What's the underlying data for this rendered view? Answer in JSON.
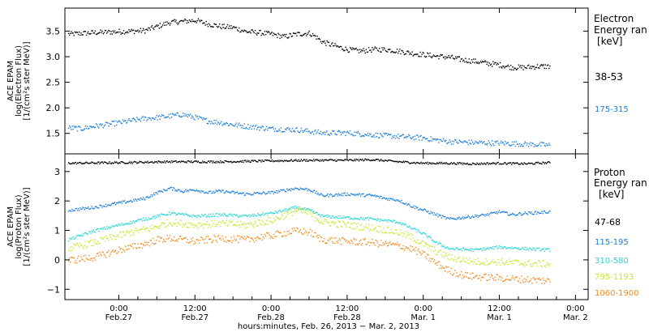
{
  "chart_data": [
    {
      "type": "scatter",
      "instrument_label": "ACE EPAM",
      "ylabel": "log(Electron Flux)",
      "yunits": "[1/(cm²s ster MeV)]",
      "legend_title": [
        "Electron",
        "Energy ran"
      ],
      "legend_units": "[keV]",
      "ylim": [
        1.1,
        3.95
      ],
      "yticks": [
        1.5,
        2.0,
        2.5,
        3.0,
        3.5
      ],
      "ytick_labels": [
        "1.5",
        "2.0",
        "2.5",
        "3.0",
        "3.5"
      ],
      "x_range_hours": [
        -8.5,
        74
      ],
      "series": [
        {
          "name": "38-53",
          "color": "#000000",
          "points": [
            [
              -8,
              3.45
            ],
            [
              -4,
              3.48
            ],
            [
              0,
              3.5
            ],
            [
              4,
              3.52
            ],
            [
              6,
              3.6
            ],
            [
              8,
              3.68
            ],
            [
              10,
              3.7
            ],
            [
              12,
              3.72
            ],
            [
              14,
              3.65
            ],
            [
              16,
              3.6
            ],
            [
              18,
              3.58
            ],
            [
              20,
              3.5
            ],
            [
              22,
              3.48
            ],
            [
              24,
              3.45
            ],
            [
              26,
              3.4
            ],
            [
              28,
              3.45
            ],
            [
              30,
              3.47
            ],
            [
              31,
              3.4
            ],
            [
              32,
              3.3
            ],
            [
              34,
              3.22
            ],
            [
              36,
              3.15
            ],
            [
              38,
              3.12
            ],
            [
              40,
              3.15
            ],
            [
              42,
              3.15
            ],
            [
              44,
              3.12
            ],
            [
              46,
              3.08
            ],
            [
              48,
              3.05
            ],
            [
              50,
              3.02
            ],
            [
              52,
              3.0
            ],
            [
              54,
              2.95
            ],
            [
              56,
              2.92
            ],
            [
              58,
              2.88
            ],
            [
              60,
              2.85
            ],
            [
              62,
              2.8
            ],
            [
              64,
              2.8
            ],
            [
              66,
              2.82
            ],
            [
              68,
              2.82
            ]
          ]
        },
        {
          "name": "175-315",
          "color": "#1f7fd6",
          "points": [
            [
              -8,
              1.62
            ],
            [
              -6,
              1.6
            ],
            [
              -4,
              1.65
            ],
            [
              -2,
              1.68
            ],
            [
              0,
              1.72
            ],
            [
              4,
              1.8
            ],
            [
              6,
              1.82
            ],
            [
              8,
              1.85
            ],
            [
              10,
              1.88
            ],
            [
              12,
              1.82
            ],
            [
              14,
              1.75
            ],
            [
              16,
              1.72
            ],
            [
              18,
              1.68
            ],
            [
              20,
              1.65
            ],
            [
              24,
              1.6
            ],
            [
              28,
              1.58
            ],
            [
              30,
              1.55
            ],
            [
              32,
              1.52
            ],
            [
              36,
              1.52
            ],
            [
              40,
              1.48
            ],
            [
              44,
              1.45
            ],
            [
              48,
              1.42
            ],
            [
              50,
              1.38
            ],
            [
              52,
              1.35
            ],
            [
              56,
              1.33
            ],
            [
              60,
              1.32
            ],
            [
              64,
              1.3
            ],
            [
              68,
              1.28
            ]
          ]
        }
      ]
    },
    {
      "type": "scatter",
      "instrument_label": "ACE EPAM",
      "ylabel": "log(Proton Flux)",
      "yunits": "[1/(cm²s ster MeV)]",
      "legend_title": [
        "Proton",
        "Energy ran"
      ],
      "legend_units": "[keV]",
      "ylim": [
        -1.35,
        3.6
      ],
      "yticks": [
        -1,
        0,
        1,
        2,
        3
      ],
      "ytick_labels": [
        "−1",
        "0",
        "1",
        "2",
        "3"
      ],
      "x_range_hours": [
        -8.5,
        74
      ],
      "xticks_hours": [
        0,
        12,
        24,
        36,
        48,
        60,
        72
      ],
      "xtick_labels": [
        [
          "0:00",
          "Feb.27"
        ],
        [
          "12:00",
          "Feb.27"
        ],
        [
          "0:00",
          "Feb.28"
        ],
        [
          "12:00",
          "Feb.28"
        ],
        [
          "0:00",
          "Mar. 1"
        ],
        [
          "12:00",
          "Mar. 1"
        ],
        [
          "0:00",
          "Mar. 2"
        ]
      ],
      "xlabel": "hours:minutes, Feb. 26, 2013 − Mar. 2, 2013",
      "series": [
        {
          "name": "47-68",
          "color": "#000000",
          "points": [
            [
              -8,
              3.3
            ],
            [
              0,
              3.32
            ],
            [
              8,
              3.35
            ],
            [
              16,
              3.35
            ],
            [
              24,
              3.38
            ],
            [
              30,
              3.4
            ],
            [
              36,
              3.4
            ],
            [
              40,
              3.42
            ],
            [
              44,
              3.35
            ],
            [
              48,
              3.3
            ],
            [
              52,
              3.3
            ],
            [
              56,
              3.28
            ],
            [
              60,
              3.3
            ],
            [
              64,
              3.28
            ],
            [
              68,
              3.32
            ]
          ]
        },
        {
          "name": "115-195",
          "color": "#1f7fd6",
          "points": [
            [
              -8,
              1.7
            ],
            [
              -4,
              1.8
            ],
            [
              0,
              1.95
            ],
            [
              4,
              2.1
            ],
            [
              6,
              2.3
            ],
            [
              8,
              2.45
            ],
            [
              10,
              2.35
            ],
            [
              12,
              2.4
            ],
            [
              14,
              2.3
            ],
            [
              16,
              2.35
            ],
            [
              20,
              2.25
            ],
            [
              24,
              2.3
            ],
            [
              28,
              2.45
            ],
            [
              30,
              2.4
            ],
            [
              32,
              2.2
            ],
            [
              36,
              2.25
            ],
            [
              40,
              2.2
            ],
            [
              42,
              2.1
            ],
            [
              44,
              2.05
            ],
            [
              46,
              1.85
            ],
            [
              48,
              1.7
            ],
            [
              50,
              1.55
            ],
            [
              52,
              1.4
            ],
            [
              54,
              1.45
            ],
            [
              56,
              1.5
            ],
            [
              58,
              1.55
            ],
            [
              60,
              1.65
            ],
            [
              62,
              1.55
            ],
            [
              64,
              1.6
            ],
            [
              66,
              1.62
            ],
            [
              68,
              1.65
            ]
          ]
        },
        {
          "name": "310-580",
          "color": "#2ad6d6",
          "points": [
            [
              -8,
              0.7
            ],
            [
              -4,
              1.0
            ],
            [
              0,
              1.2
            ],
            [
              4,
              1.4
            ],
            [
              6,
              1.5
            ],
            [
              8,
              1.6
            ],
            [
              12,
              1.5
            ],
            [
              16,
              1.55
            ],
            [
              20,
              1.5
            ],
            [
              24,
              1.6
            ],
            [
              28,
              1.8
            ],
            [
              30,
              1.7
            ],
            [
              32,
              1.5
            ],
            [
              36,
              1.45
            ],
            [
              40,
              1.4
            ],
            [
              44,
              1.3
            ],
            [
              46,
              1.1
            ],
            [
              48,
              0.9
            ],
            [
              50,
              0.6
            ],
            [
              52,
              0.4
            ],
            [
              56,
              0.35
            ],
            [
              60,
              0.45
            ],
            [
              64,
              0.4
            ],
            [
              68,
              0.35
            ]
          ]
        },
        {
          "name": "795-1193",
          "color": "#c8e62a",
          "points": [
            [
              -8,
              0.4
            ],
            [
              -4,
              0.6
            ],
            [
              0,
              0.85
            ],
            [
              4,
              1.05
            ],
            [
              6,
              1.15
            ],
            [
              8,
              1.3
            ],
            [
              12,
              1.2
            ],
            [
              16,
              1.25
            ],
            [
              20,
              1.2
            ],
            [
              24,
              1.35
            ],
            [
              28,
              1.7
            ],
            [
              30,
              1.6
            ],
            [
              32,
              1.3
            ],
            [
              36,
              1.2
            ],
            [
              40,
              1.1
            ],
            [
              44,
              0.95
            ],
            [
              46,
              0.8
            ],
            [
              48,
              0.55
            ],
            [
              50,
              0.3
            ],
            [
              52,
              0.1
            ],
            [
              56,
              -0.05
            ],
            [
              60,
              -0.05
            ],
            [
              64,
              -0.1
            ],
            [
              68,
              -0.12
            ]
          ]
        },
        {
          "name": "1060-1900",
          "color": "#f28c1e",
          "points": [
            [
              -8,
              0.0
            ],
            [
              -4,
              0.1
            ],
            [
              0,
              0.35
            ],
            [
              4,
              0.55
            ],
            [
              6,
              0.7
            ],
            [
              8,
              0.75
            ],
            [
              12,
              0.65
            ],
            [
              16,
              0.75
            ],
            [
              20,
              0.7
            ],
            [
              24,
              0.85
            ],
            [
              28,
              1.0
            ],
            [
              30,
              0.95
            ],
            [
              32,
              0.7
            ],
            [
              36,
              0.65
            ],
            [
              40,
              0.6
            ],
            [
              44,
              0.5
            ],
            [
              46,
              0.4
            ],
            [
              48,
              0.2
            ],
            [
              50,
              -0.1
            ],
            [
              52,
              -0.35
            ],
            [
              54,
              -0.5
            ],
            [
              56,
              -0.55
            ],
            [
              60,
              -0.6
            ],
            [
              64,
              -0.65
            ],
            [
              68,
              -0.7
            ]
          ]
        }
      ]
    }
  ]
}
